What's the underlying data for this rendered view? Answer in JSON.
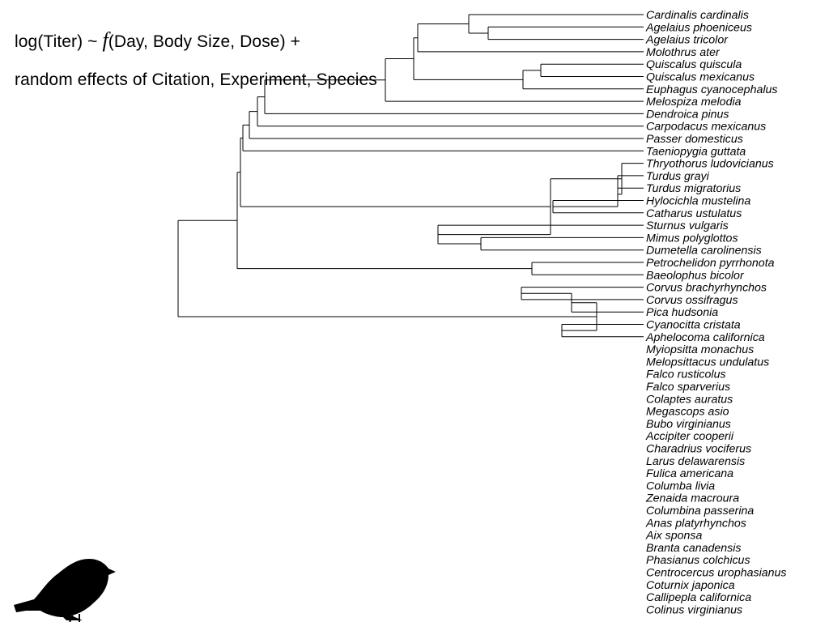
{
  "slide": {
    "title_part1": "log(Titer) ~ ",
    "title_f": "f",
    "title_part2": "(Day, Body Size, Dose) +",
    "title_line2": "random effects of Citation, Experiment, Species"
  },
  "tree": {
    "leaves": [
      "Cardinalis cardinalis",
      "Agelaius phoeniceus",
      "Agelaius tricolor",
      "Molothrus ater",
      "Quiscalus quiscula",
      "Quiscalus mexicanus",
      "Euphagus cyanocephalus",
      "Melospiza melodia",
      "Dendroica pinus",
      "Carpodacus mexicanus",
      "Passer domesticus",
      "Taeniopygia guttata",
      "Thryothorus ludovicianus",
      "Turdus grayi",
      "Turdus migratorius",
      "Hylocichla mustelina",
      "Catharus ustulatus",
      "Sturnus vulgaris",
      "Mimus polyglottos",
      "Dumetella carolinensis",
      "Petrochelidon pyrrhonota",
      "Baeolophus bicolor",
      "Corvus brachyrhynchos",
      "Corvus ossifragus",
      "Pica hudsonia",
      "Cyanocitta cristata",
      "Aphelocoma californica",
      "Myiopsitta monachus",
      "Melopsittacus undulatus",
      "Falco rusticolus",
      "Falco sparverius",
      "Colaptes auratus",
      "Megascops asio",
      "Bubo virginianus",
      "Accipiter cooperii",
      "Charadrius vociferus",
      "Larus delawarensis",
      "Fulica americana",
      "Columba livia",
      "Zenaida macroura",
      "Columbina passerina",
      "Anas platyrhynchos",
      "Aix sponsa",
      "Branta canadensis",
      "Phasianus colchicus",
      "Centrocercus urophasianus",
      "Coturnix japonica",
      "Callipepla californica",
      "Colinus virginianus"
    ],
    "topology": "(((((((((((0,(1,2)),3),((4,5),6)),7),8),9),10),11),((12,((13,14),(15,16))),(17,(18,19)))),(20,21)),(((22,23),24),(25,26))),(27,28)),(29,30)),((31,(32,33)),34)),(35,36)),(37,((38,39),40))),(((41,42),43),(((44,45),46),(47,48))))"
  },
  "icons": {
    "silhouette": "sparrow-silhouette-icon"
  }
}
